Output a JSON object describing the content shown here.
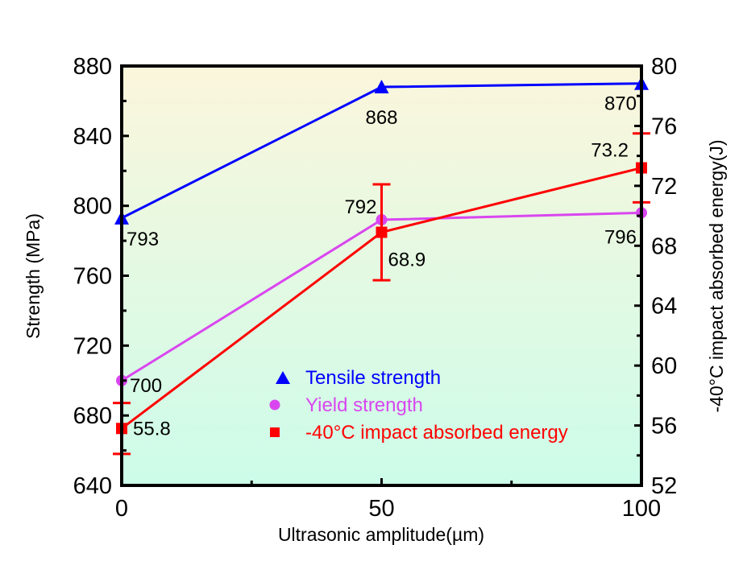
{
  "chart_data": {
    "type": "line",
    "title": "",
    "xlabel": "Ultrasonic amplitude(µm)",
    "ylabel": "Strength (MPa)",
    "y2label": "-40°C impact absorbed energy(J)",
    "x": [
      0,
      50,
      100
    ],
    "xlim": [
      0,
      100
    ],
    "xticks": [
      0,
      50,
      100
    ],
    "xminor": [
      25,
      75
    ],
    "ylim": [
      640,
      880
    ],
    "yticks": [
      640,
      680,
      720,
      760,
      800,
      840,
      880
    ],
    "y2lim": [
      52,
      80
    ],
    "y2ticks": [
      52,
      56,
      60,
      64,
      68,
      72,
      76,
      80
    ],
    "grid": false,
    "legend_position": "lower-center",
    "background_gradient": {
      "top": "#FBF6DC",
      "bottom": "#CCFCE9"
    },
    "series": [
      {
        "name": "Tensile strength",
        "axis": "left",
        "marker": "triangle",
        "color": "#0000FF",
        "values": [
          793,
          868,
          870
        ],
        "labels": [
          "793",
          "868",
          "870"
        ]
      },
      {
        "name": "Yield strength",
        "axis": "left",
        "marker": "circle",
        "color": "#D946EF",
        "values": [
          700,
          792,
          796
        ],
        "labels": [
          "700",
          "792",
          "796"
        ]
      },
      {
        "name": "-40°C impact absorbed energy",
        "axis": "right",
        "marker": "square",
        "color": "#FF0000",
        "values": [
          55.8,
          68.9,
          73.2
        ],
        "errors": [
          1.7,
          3.2,
          2.3
        ],
        "labels": [
          "55.8",
          "68.9",
          "73.2"
        ]
      }
    ]
  }
}
